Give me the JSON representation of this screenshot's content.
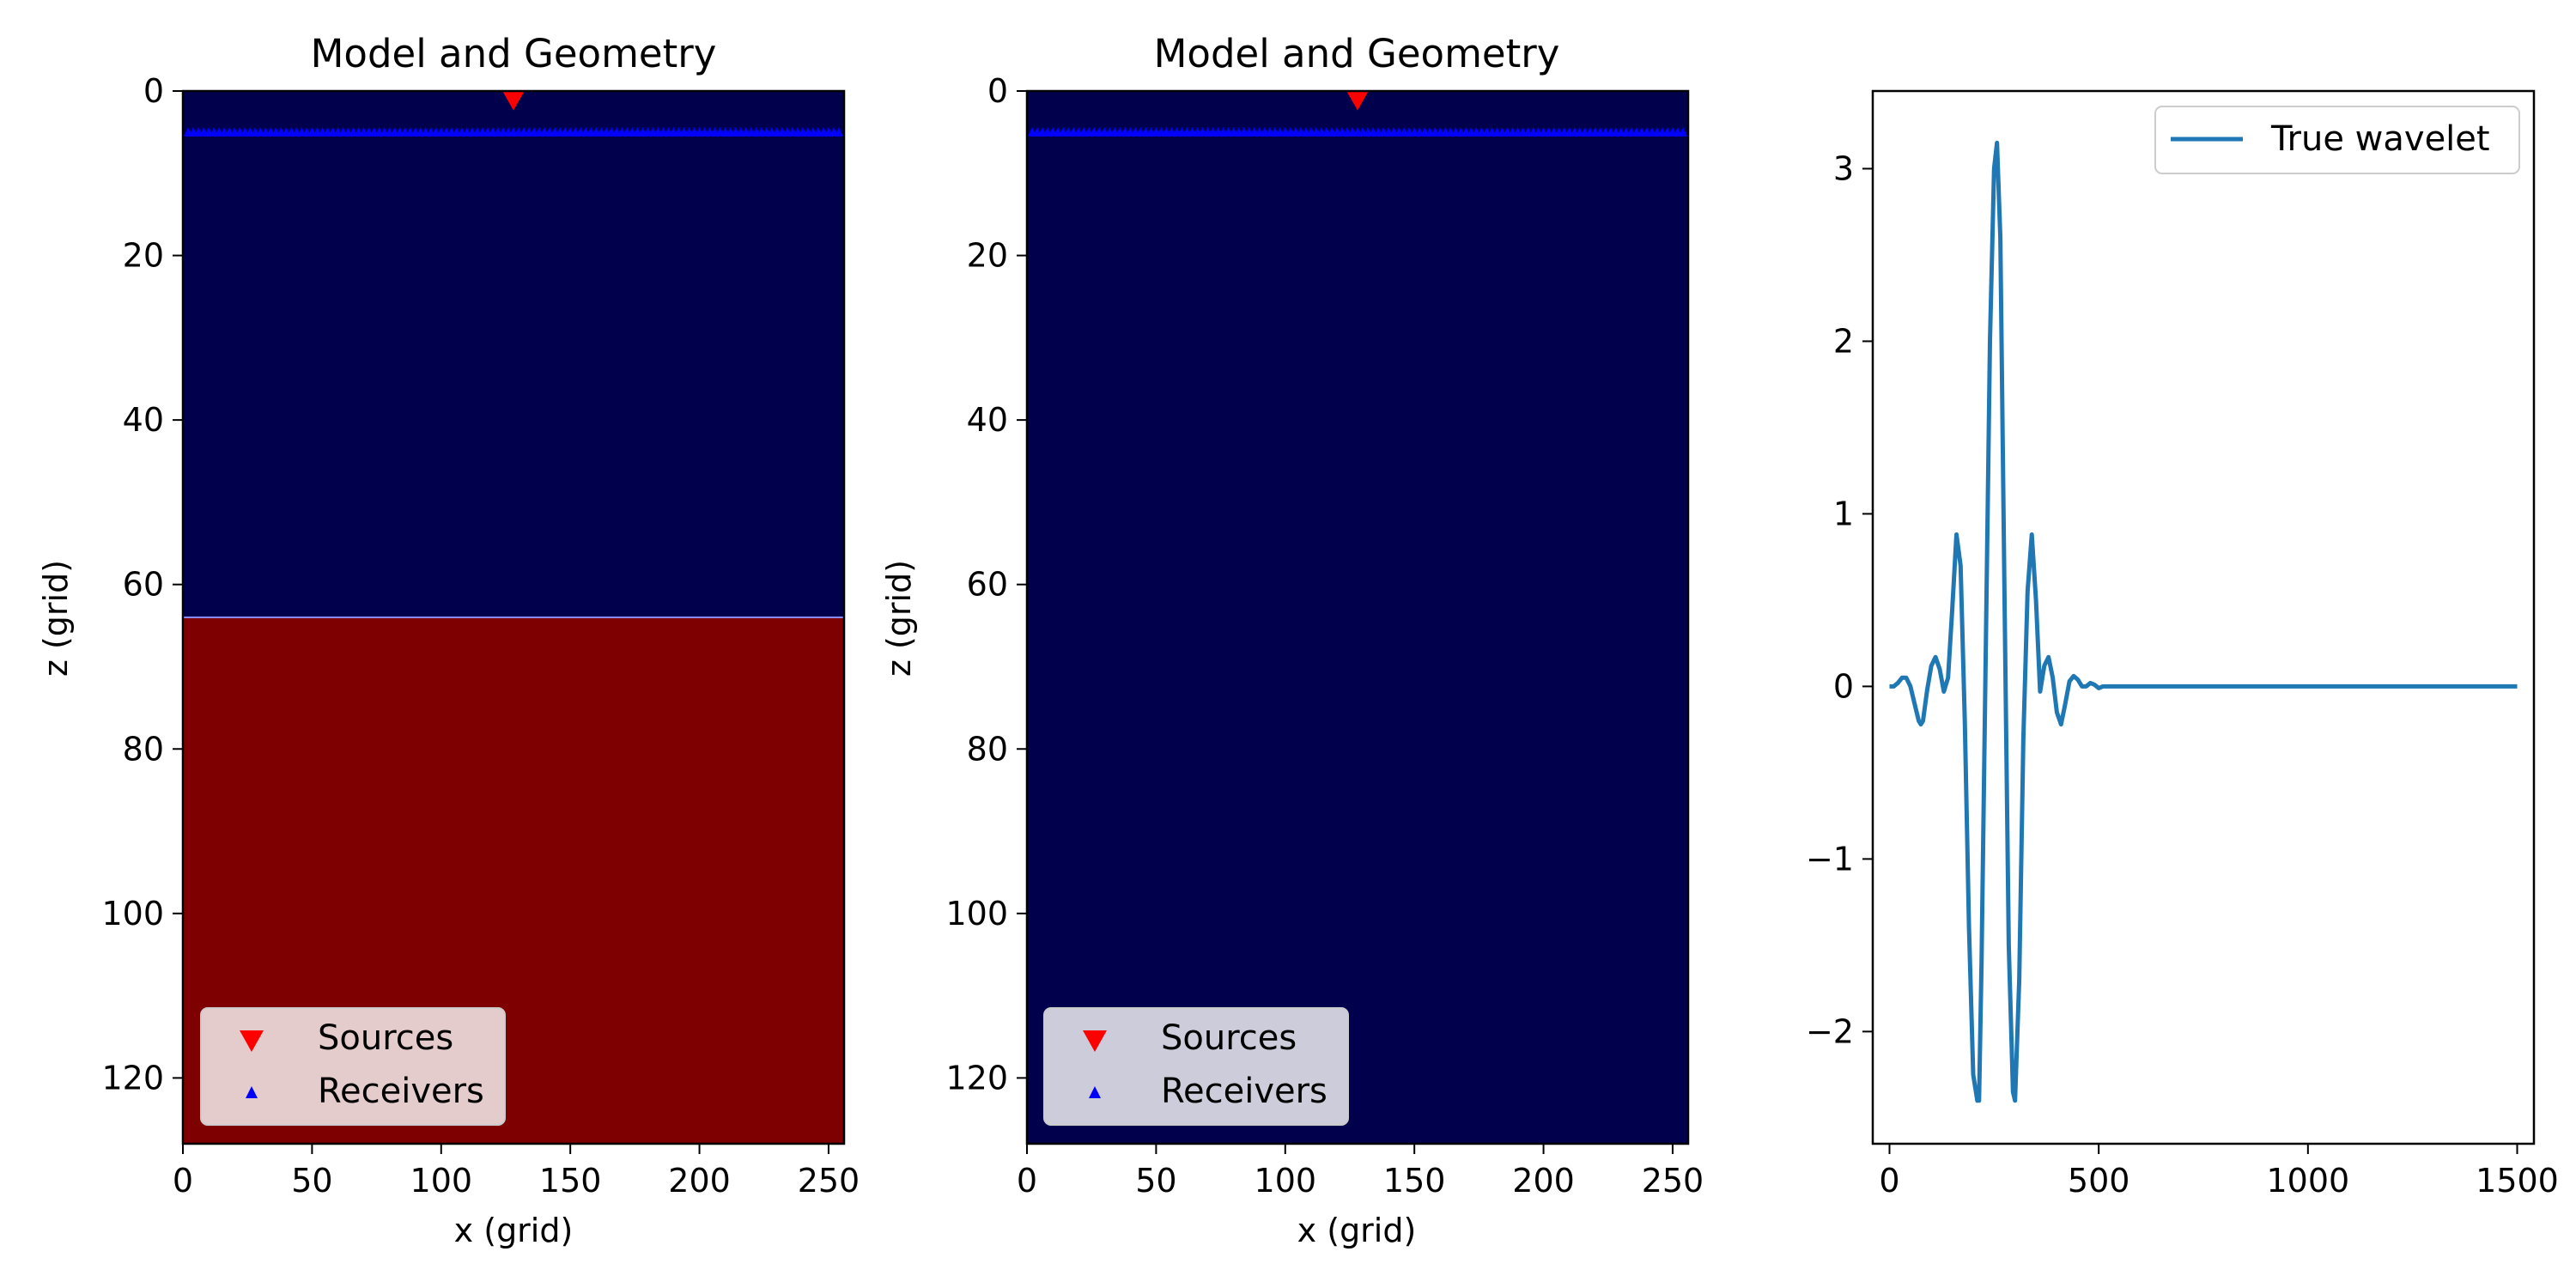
{
  "chart_data": [
    {
      "type": "heatmap",
      "title": "Model and Geometry",
      "xlabel": "x (grid)",
      "ylabel": "z (grid)",
      "xlim": [
        0,
        256
      ],
      "ylim": [
        128,
        0
      ],
      "x_ticks": [
        "0",
        "50",
        "100",
        "150",
        "200",
        "250"
      ],
      "y_ticks": [
        "0",
        "20",
        "40",
        "60",
        "80",
        "100",
        "120"
      ],
      "model_layers": [
        {
          "z_top": 0,
          "z_bottom": 64,
          "color": "#00004c"
        },
        {
          "z_top": 64,
          "z_bottom": 128,
          "color": "#7f0000"
        }
      ],
      "sources": [
        {
          "x": 128,
          "z": 1
        }
      ],
      "receivers": {
        "z": 5,
        "x_start": 2,
        "x_end": 254,
        "x_step": 2
      },
      "legend": {
        "placement": "lower-left",
        "entries": [
          "Sources",
          "Receivers"
        ]
      },
      "colors": {
        "sources": "#ff0000",
        "receivers": "#0000ff"
      }
    },
    {
      "type": "heatmap",
      "title": "Model and Geometry",
      "xlabel": "x (grid)",
      "ylabel": "z (grid)",
      "xlim": [
        0,
        256
      ],
      "ylim": [
        128,
        0
      ],
      "x_ticks": [
        "0",
        "50",
        "100",
        "150",
        "200",
        "250"
      ],
      "y_ticks": [
        "0",
        "20",
        "40",
        "60",
        "80",
        "100",
        "120"
      ],
      "model_layers": [
        {
          "z_top": 0,
          "z_bottom": 128,
          "color": "#00004c"
        }
      ],
      "sources": [
        {
          "x": 128,
          "z": 1
        }
      ],
      "receivers": {
        "z": 5,
        "x_start": 2,
        "x_end": 254,
        "x_step": 2
      },
      "legend": {
        "placement": "lower-left",
        "entries": [
          "Sources",
          "Receivers"
        ]
      },
      "colors": {
        "sources": "#ff0000",
        "receivers": "#0000ff"
      }
    },
    {
      "type": "line",
      "title": "",
      "xlabel": "",
      "ylabel": "",
      "xlim": [
        -40,
        1540
      ],
      "ylim": [
        -2.65,
        3.45
      ],
      "x_ticks": [
        "0",
        "500",
        "1000",
        "1500"
      ],
      "y_ticks": [
        "−2",
        "−1",
        "0",
        "1",
        "2",
        "3"
      ],
      "series": [
        {
          "name": "True wavelet",
          "color": "#1f77b4",
          "x": [
            0,
            10,
            20,
            30,
            40,
            50,
            60,
            70,
            75,
            80,
            90,
            100,
            110,
            120,
            130,
            140,
            150,
            160,
            170,
            180,
            190,
            200,
            210,
            214,
            220,
            230,
            240,
            250,
            257,
            265,
            275,
            285,
            295,
            300,
            310,
            320,
            330,
            340,
            350,
            360,
            370,
            380,
            390,
            400,
            410,
            420,
            430,
            440,
            450,
            460,
            470,
            480,
            490,
            500,
            510,
            520,
            530,
            540,
            550,
            560,
            580,
            600,
            700,
            800,
            900,
            1000,
            1100,
            1200,
            1300,
            1400,
            1500
          ],
          "values": [
            0,
            0,
            0.02,
            0.05,
            0.05,
            0.0,
            -0.1,
            -0.2,
            -0.22,
            -0.2,
            -0.02,
            0.12,
            0.17,
            0.1,
            -0.03,
            0.05,
            0.45,
            0.88,
            0.7,
            -0.2,
            -1.4,
            -2.25,
            -2.4,
            -2.4,
            -1.6,
            0.2,
            2.0,
            3.0,
            3.15,
            2.6,
            0.5,
            -1.5,
            -2.35,
            -2.4,
            -1.7,
            -0.3,
            0.55,
            0.88,
            0.5,
            -0.03,
            0.12,
            0.17,
            0.05,
            -0.15,
            -0.22,
            -0.1,
            0.03,
            0.06,
            0.04,
            0.0,
            0.0,
            0.02,
            0.01,
            -0.01,
            0.0,
            0.0,
            0.0,
            0.0,
            0.0,
            0.0,
            0.0,
            0.0,
            0.0,
            0.0,
            0.0,
            0.0,
            0.0,
            0.0,
            0.0,
            0.0,
            0.0
          ]
        }
      ],
      "legend": {
        "placement": "top-right",
        "entries": [
          "True wavelet"
        ]
      }
    }
  ]
}
